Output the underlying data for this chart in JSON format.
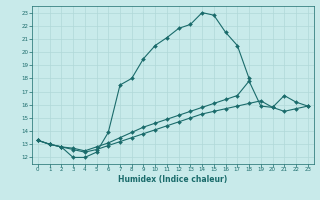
{
  "xlabel": "Humidex (Indice chaleur)",
  "xlim": [
    -0.5,
    23.5
  ],
  "ylim": [
    11.5,
    23.5
  ],
  "yticks": [
    12,
    13,
    14,
    15,
    16,
    17,
    18,
    19,
    20,
    21,
    22,
    23
  ],
  "xticks": [
    0,
    1,
    2,
    3,
    4,
    5,
    6,
    7,
    8,
    9,
    10,
    11,
    12,
    13,
    14,
    15,
    16,
    17,
    18,
    19,
    20,
    21,
    22,
    23
  ],
  "bg_color": "#c8eaea",
  "line_color": "#1a6b6b",
  "grid_color": "#b0d8d8",
  "line1_x": [
    0,
    1,
    2,
    3,
    4,
    5,
    6,
    7,
    8,
    9,
    10,
    11,
    12,
    13,
    14,
    15,
    16,
    17,
    18
  ],
  "line1_y": [
    13.3,
    13.0,
    12.8,
    12.0,
    12.0,
    12.4,
    13.9,
    17.5,
    18.0,
    19.5,
    20.5,
    21.1,
    21.8,
    22.1,
    23.0,
    22.8,
    21.5,
    20.5,
    18.0
  ],
  "line2_x": [
    0,
    1,
    2,
    3,
    4,
    5,
    6,
    7,
    8,
    9,
    10,
    11,
    12,
    13,
    14,
    15,
    16,
    17,
    18,
    19,
    20,
    21,
    22,
    23
  ],
  "line2_y": [
    13.3,
    13.0,
    12.8,
    12.7,
    12.5,
    12.8,
    13.1,
    13.5,
    13.9,
    14.3,
    14.6,
    14.9,
    15.2,
    15.5,
    15.8,
    16.1,
    16.4,
    16.7,
    17.8,
    15.9,
    15.8,
    16.7,
    16.2,
    15.9
  ],
  "line3_x": [
    0,
    1,
    2,
    3,
    4,
    5,
    6,
    7,
    8,
    9,
    10,
    11,
    12,
    13,
    14,
    15,
    16,
    17,
    18,
    19,
    20,
    21,
    22,
    23
  ],
  "line3_y": [
    13.3,
    13.0,
    12.8,
    12.6,
    12.4,
    12.6,
    12.9,
    13.2,
    13.5,
    13.8,
    14.1,
    14.4,
    14.7,
    15.0,
    15.3,
    15.5,
    15.7,
    15.9,
    16.1,
    16.3,
    15.8,
    15.5,
    15.7,
    15.9
  ]
}
